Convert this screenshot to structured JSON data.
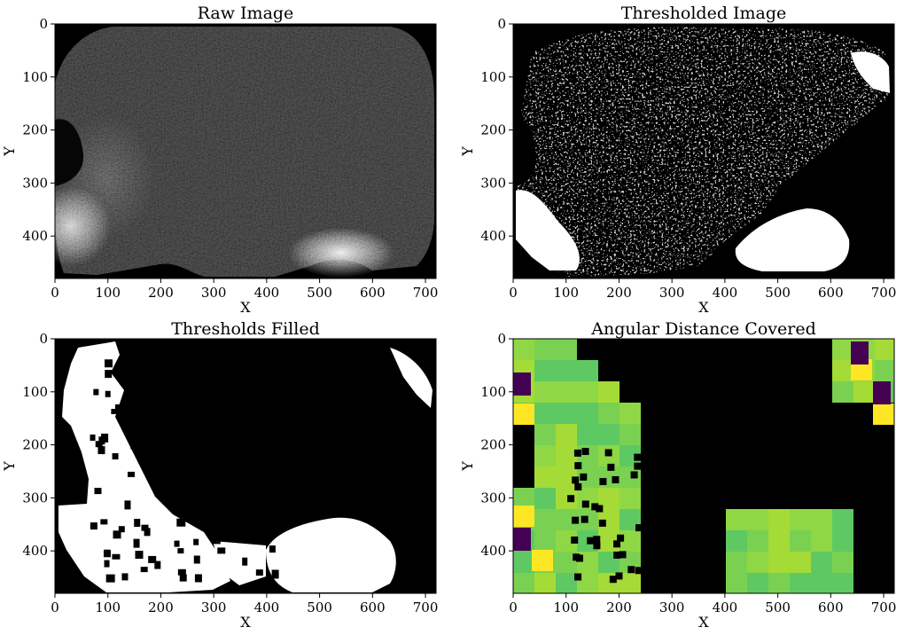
{
  "chart_data": [
    {
      "type": "heatmap",
      "title": "Raw Image",
      "xlabel": "X",
      "ylabel": "Y",
      "xlim": [
        0,
        720
      ],
      "ylim": [
        480,
        0
      ],
      "xticks": [
        0,
        100,
        200,
        300,
        400,
        500,
        600,
        700
      ],
      "yticks": [
        0,
        100,
        200,
        300,
        400
      ],
      "colormap": "gray"
    },
    {
      "type": "heatmap",
      "title": "Thresholded Image",
      "xlabel": "X",
      "ylabel": "Y",
      "xlim": [
        0,
        720
      ],
      "ylim": [
        480,
        0
      ],
      "xticks": [
        0,
        100,
        200,
        300,
        400,
        500,
        600,
        700
      ],
      "yticks": [
        0,
        100,
        200,
        300,
        400
      ],
      "colormap": "binary"
    },
    {
      "type": "heatmap",
      "title": "Thresholds Filled",
      "xlabel": "X",
      "ylabel": "Y",
      "xlim": [
        0,
        720
      ],
      "ylim": [
        480,
        0
      ],
      "xticks": [
        0,
        100,
        200,
        300,
        400,
        500,
        600,
        700
      ],
      "yticks": [
        0,
        100,
        200,
        300,
        400
      ],
      "colormap": "binary"
    },
    {
      "type": "heatmap",
      "title": "Angular Distance Covered",
      "xlabel": "X",
      "ylabel": "Y",
      "xlim": [
        0,
        720
      ],
      "ylim": [
        480,
        0
      ],
      "xticks": [
        0,
        100,
        200,
        300,
        400,
        500,
        600,
        700
      ],
      "yticks": [
        0,
        100,
        200,
        300,
        400
      ],
      "colormap": "viridis"
    }
  ],
  "colors": {
    "background": "#000000",
    "foreground": "#ffffff",
    "viridis_dark": "#440154",
    "viridis_green": "#5ec962",
    "viridis_lime": "#a5db36",
    "viridis_yellow": "#fde725"
  }
}
